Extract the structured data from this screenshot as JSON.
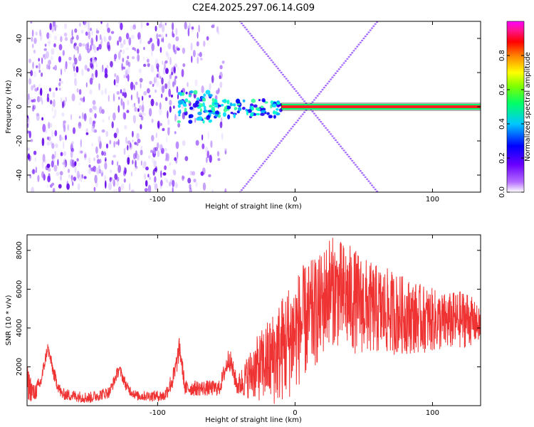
{
  "title": "C2E4.2025.297.06.14.G09",
  "chart_data": [
    {
      "type": "heatmap",
      "name": "spectrogram",
      "xlabel": "Height of straight line (km)",
      "ylabel": "Frequency (Hz)",
      "xlim": [
        -195,
        135
      ],
      "ylim": [
        -50,
        50
      ],
      "xticks": [
        -100,
        0,
        100
      ],
      "yticks": [
        -40,
        -20,
        0,
        20,
        40
      ],
      "colorbar": {
        "label": "Normalized spectral amplitude",
        "range": [
          0,
          1
        ],
        "ticks": [
          0.0,
          0.2,
          0.4,
          0.6,
          0.8
        ],
        "tick_labels": [
          "0.0",
          "0.2",
          "0.4",
          "0.6",
          "0.8"
        ],
        "colormap": [
          "#ffffff",
          "#6a00ff",
          "#0000ff",
          "#00ffff",
          "#00ff00",
          "#ffff00",
          "#ff0000",
          "#ff1493",
          "#ff00ff"
        ]
      },
      "features": {
        "noise_band_km": [
          -195,
          -50
        ],
        "scatter_cluster_km": [
          -85,
          -10
        ],
        "scatter_cluster_freq_hz": [
          -15,
          8
        ],
        "carrier_line": {
          "freq_hz": 0,
          "from_km": -10,
          "to_km": 135,
          "amplitude": 0.85
        },
        "crossing_lines": [
          {
            "from": [
              -40,
              50
            ],
            "to": [
              60,
              -50
            ]
          },
          {
            "from": [
              -40,
              -50
            ],
            "to": [
              60,
              50
            ]
          }
        ]
      }
    },
    {
      "type": "line",
      "name": "snr",
      "xlabel": "Height of straight line (km)",
      "ylabel": "SNR (10 * v/v)",
      "xlim": [
        -195,
        135
      ],
      "ylim": [
        0,
        8800
      ],
      "xticks": [
        -100,
        0,
        100
      ],
      "yticks": [
        2000,
        4000,
        6000,
        8000
      ],
      "color": "#ef3333",
      "envelope": [
        {
          "x": -195,
          "base": 1200,
          "spread": 900
        },
        {
          "x": -190,
          "base": 600,
          "spread": 500
        },
        {
          "x": -185,
          "base": 1200,
          "spread": 400
        },
        {
          "x": -180,
          "base": 3000,
          "spread": 300
        },
        {
          "x": -175,
          "base": 1500,
          "spread": 400
        },
        {
          "x": -170,
          "base": 600,
          "spread": 300
        },
        {
          "x": -150,
          "base": 400,
          "spread": 300
        },
        {
          "x": -135,
          "base": 700,
          "spread": 300
        },
        {
          "x": -128,
          "base": 1900,
          "spread": 300
        },
        {
          "x": -122,
          "base": 900,
          "spread": 300
        },
        {
          "x": -115,
          "base": 500,
          "spread": 250
        },
        {
          "x": -95,
          "base": 500,
          "spread": 300
        },
        {
          "x": -88,
          "base": 1500,
          "spread": 600
        },
        {
          "x": -84,
          "base": 3000,
          "spread": 600
        },
        {
          "x": -80,
          "base": 900,
          "spread": 400
        },
        {
          "x": -55,
          "base": 900,
          "spread": 400
        },
        {
          "x": -48,
          "base": 2500,
          "spread": 600
        },
        {
          "x": -42,
          "base": 1000,
          "spread": 500
        },
        {
          "x": -30,
          "base": 1800,
          "spread": 1500
        },
        {
          "x": -15,
          "base": 2500,
          "spread": 2500
        },
        {
          "x": -5,
          "base": 3300,
          "spread": 3000
        },
        {
          "x": 5,
          "base": 4200,
          "spread": 3000
        },
        {
          "x": 18,
          "base": 5000,
          "spread": 2800
        },
        {
          "x": 25,
          "base": 6000,
          "spread": 2800
        },
        {
          "x": 40,
          "base": 5500,
          "spread": 2800
        },
        {
          "x": 55,
          "base": 5000,
          "spread": 2400
        },
        {
          "x": 70,
          "base": 4800,
          "spread": 2200
        },
        {
          "x": 90,
          "base": 4500,
          "spread": 1800
        },
        {
          "x": 110,
          "base": 4300,
          "spread": 1500
        },
        {
          "x": 125,
          "base": 4500,
          "spread": 1500
        },
        {
          "x": 135,
          "base": 4100,
          "spread": 800
        }
      ]
    }
  ]
}
